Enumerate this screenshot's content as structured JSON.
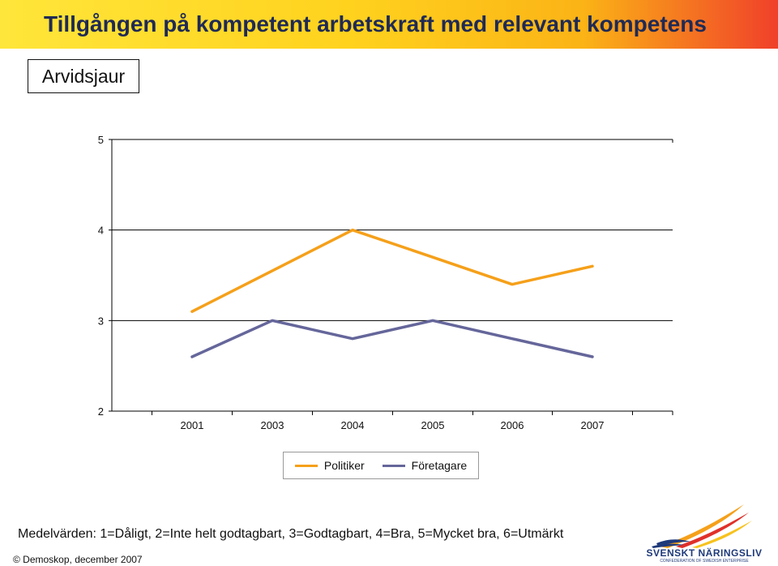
{
  "header": {
    "title": "Tillgången på kompetent arbetskraft med relevant kompetens"
  },
  "region_label": "Arvidsjaur",
  "chart_data": {
    "type": "line",
    "categories": [
      "2001",
      "2003",
      "2004",
      "2005",
      "2006",
      "2007"
    ],
    "series": [
      {
        "name": "Politiker",
        "values": [
          3.1,
          3.55,
          4.0,
          3.7,
          3.4,
          3.6
        ],
        "color": "#f5a01a"
      },
      {
        "name": "Företagare",
        "values": [
          2.6,
          3.0,
          2.8,
          3.0,
          2.8,
          2.6
        ],
        "color": "#65669a"
      }
    ],
    "yticks": [
      "2",
      "3",
      "4",
      "5"
    ],
    "ylim": [
      2,
      5
    ],
    "grid": false,
    "legend_position": "bottom"
  },
  "footnote": "Medelvärden: 1=Dåligt, 2=Inte helt godtagbart, 3=Godtagbart, 4=Bra, 5=Mycket bra, 6=Utmärkt",
  "copyright": "© Demoskop, december 2007",
  "logo": {
    "name": "SVENSKT NÄRINGSLIV",
    "subtitle": "CONFEDERATION OF SWEDISH ENTERPRISE"
  }
}
